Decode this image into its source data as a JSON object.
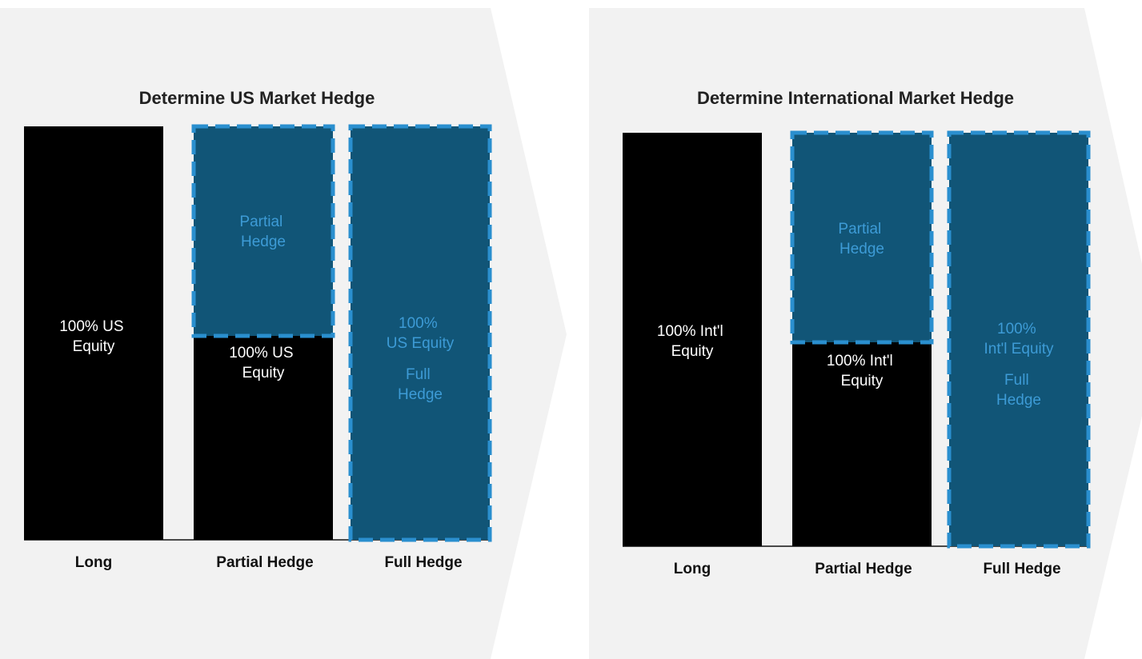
{
  "colors": {
    "background": "#f2f2f2",
    "equity_block": "#000000",
    "hedge_fill": "#115577",
    "hedge_border": "#2a8fcf",
    "hedge_text": "#3d9bd6"
  },
  "panels": [
    {
      "title": "Determine US Market Hedge",
      "categories": [
        "Long",
        "Partial Hedge",
        "Full Hedge"
      ],
      "long_label": [
        "100% US",
        "Equity"
      ],
      "partial_equity_label": [
        "100% US",
        "Equity"
      ],
      "partial_hedge_label": [
        "Partial",
        "Hedge"
      ],
      "full_equity_label": [
        "100%",
        "US Equity"
      ],
      "full_hedge_label": [
        "Full",
        "Hedge"
      ],
      "partial_hedge_fraction": 0.5
    },
    {
      "title": "Determine International Market Hedge",
      "categories": [
        "Long",
        "Partial Hedge",
        "Full Hedge"
      ],
      "long_label": [
        "100% Int'l",
        "Equity"
      ],
      "partial_equity_label": [
        "100% Int'l",
        "Equity"
      ],
      "partial_hedge_label": [
        "Partial",
        "Hedge"
      ],
      "full_equity_label": [
        "100%",
        "Int'l Equity"
      ],
      "full_hedge_label": [
        "Full",
        "Hedge"
      ],
      "partial_hedge_fraction": 0.5
    }
  ]
}
